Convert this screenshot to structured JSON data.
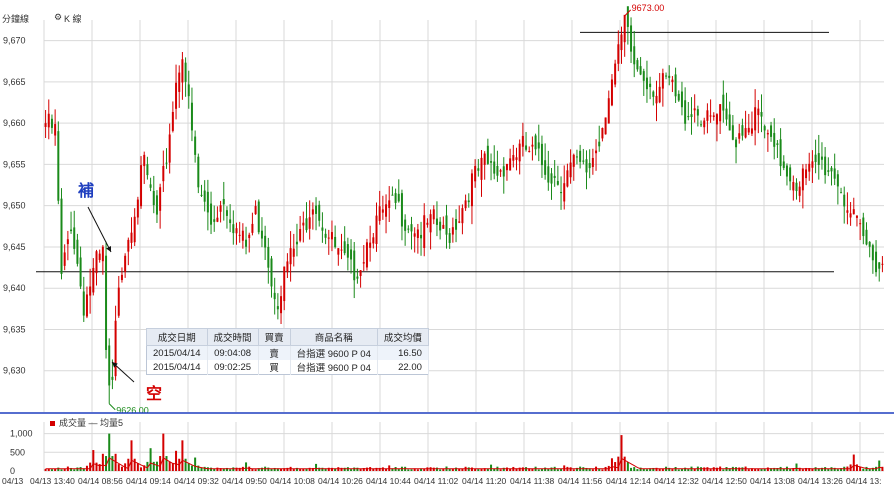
{
  "header": {
    "title": "分鐘線",
    "kline_label": "K 線"
  },
  "annotations": {
    "buy_cover": "補",
    "sell_short": "空"
  },
  "trade_table": {
    "headers": [
      "成交日期",
      "成交時間",
      "買賣",
      "商品名稱",
      "成交均價"
    ],
    "rows": [
      [
        "2015/04/14",
        "09:04:08",
        "賣",
        "台指選 9600 P 04",
        "16.50"
      ],
      [
        "2015/04/14",
        "09:02:25",
        "買",
        "台指選 9600 P 04",
        "22.00"
      ]
    ]
  },
  "colors": {
    "up": "#d40000",
    "down": "#1a8a1a",
    "separator": "#1f3fbf",
    "grid": "#d9d9d9",
    "label": "#d40000",
    "ma": "#d40000"
  },
  "chart_data": {
    "type": "candlestick",
    "y_ticks": [
      "9,670",
      "9,665",
      "9,660",
      "9,655",
      "9,650",
      "9,645",
      "9,640",
      "9,635",
      "9,630"
    ],
    "ylim": [
      9625,
      9672.5
    ],
    "high_label": "9673.00",
    "low_label": "9626.00",
    "high_value": 9673,
    "low_value": 9626,
    "reference_lines": [
      9671,
      9642
    ],
    "x_ticks": [
      "04/13 13:40",
      "04/14 08:56",
      "04/14 09:14",
      "04/14 09:32",
      "04/14 09:50",
      "04/14 10:08",
      "04/14 10:26",
      "04/14 10:44",
      "04/14 11:02",
      "04/14 11:20",
      "04/14 11:38",
      "04/14 11:56",
      "04/14 12:14",
      "04/14 12:32",
      "04/14 12:50",
      "04/14 13:08",
      "04/14 13:26",
      "04/14 13:"
    ],
    "x_tick_first_short": "04/13",
    "volume_legend": "成交量 — 均量5",
    "volume_ticks": [
      "1,000",
      "500",
      "0"
    ],
    "volume_ylim": [
      0,
      1150
    ],
    "close_path": [
      [
        0,
        9660
      ],
      [
        3,
        9659
      ],
      [
        5,
        9641
      ],
      [
        8,
        9648
      ],
      [
        12,
        9638
      ],
      [
        16,
        9643
      ],
      [
        18,
        9644
      ],
      [
        19,
        9632
      ],
      [
        20,
        9627
      ],
      [
        21,
        9628
      ],
      [
        22,
        9635
      ],
      [
        23,
        9641
      ],
      [
        25,
        9645
      ],
      [
        28,
        9650
      ],
      [
        31,
        9655
      ],
      [
        35,
        9648
      ],
      [
        38,
        9656
      ],
      [
        41,
        9665
      ],
      [
        43,
        9669
      ],
      [
        45,
        9662
      ],
      [
        48,
        9652
      ],
      [
        52,
        9648
      ],
      [
        56,
        9651
      ],
      [
        60,
        9647
      ],
      [
        63,
        9645
      ],
      [
        66,
        9649
      ],
      [
        69,
        9646
      ],
      [
        71,
        9641
      ],
      [
        73,
        9639
      ],
      [
        76,
        9643
      ],
      [
        80,
        9646
      ],
      [
        84,
        9651
      ],
      [
        88,
        9647
      ],
      [
        92,
        9644
      ],
      [
        96,
        9642
      ],
      [
        99,
        9643
      ],
      [
        102,
        9647
      ],
      [
        106,
        9649
      ],
      [
        110,
        9650
      ],
      [
        114,
        9648
      ],
      [
        118,
        9647
      ],
      [
        122,
        9648
      ],
      [
        126,
        9646
      ],
      [
        130,
        9649
      ],
      [
        134,
        9653
      ],
      [
        138,
        9655
      ],
      [
        142,
        9654
      ],
      [
        146,
        9656
      ],
      [
        150,
        9657
      ],
      [
        154,
        9656
      ],
      [
        158,
        9654
      ],
      [
        162,
        9653
      ],
      [
        166,
        9655
      ],
      [
        170,
        9654
      ],
      [
        174,
        9658
      ],
      [
        177,
        9664
      ],
      [
        180,
        9668
      ],
      [
        182,
        9672
      ],
      [
        185,
        9667
      ],
      [
        188,
        9666
      ],
      [
        192,
        9664
      ],
      [
        196,
        9665
      ],
      [
        200,
        9661
      ],
      [
        204,
        9662
      ],
      [
        208,
        9660
      ],
      [
        212,
        9661
      ],
      [
        216,
        9658
      ],
      [
        220,
        9660
      ],
      [
        224,
        9661
      ],
      [
        228,
        9657
      ],
      [
        232,
        9655
      ],
      [
        236,
        9653
      ],
      [
        240,
        9654
      ],
      [
        244,
        9655
      ],
      [
        248,
        9654
      ],
      [
        251,
        9651
      ],
      [
        254,
        9648
      ],
      [
        258,
        9645
      ],
      [
        262,
        9643
      ]
    ],
    "volume_spikes": [
      [
        15,
        560
      ],
      [
        18,
        460
      ],
      [
        20,
        1000
      ],
      [
        22,
        460
      ],
      [
        27,
        820
      ],
      [
        33,
        610
      ],
      [
        37,
        1000
      ],
      [
        41,
        540
      ],
      [
        43,
        820
      ],
      [
        47,
        360
      ],
      [
        63,
        230
      ],
      [
        85,
        190
      ],
      [
        108,
        150
      ],
      [
        140,
        170
      ],
      [
        163,
        150
      ],
      [
        178,
        340
      ],
      [
        181,
        960
      ],
      [
        236,
        200
      ],
      [
        254,
        440
      ],
      [
        262,
        280
      ]
    ]
  }
}
